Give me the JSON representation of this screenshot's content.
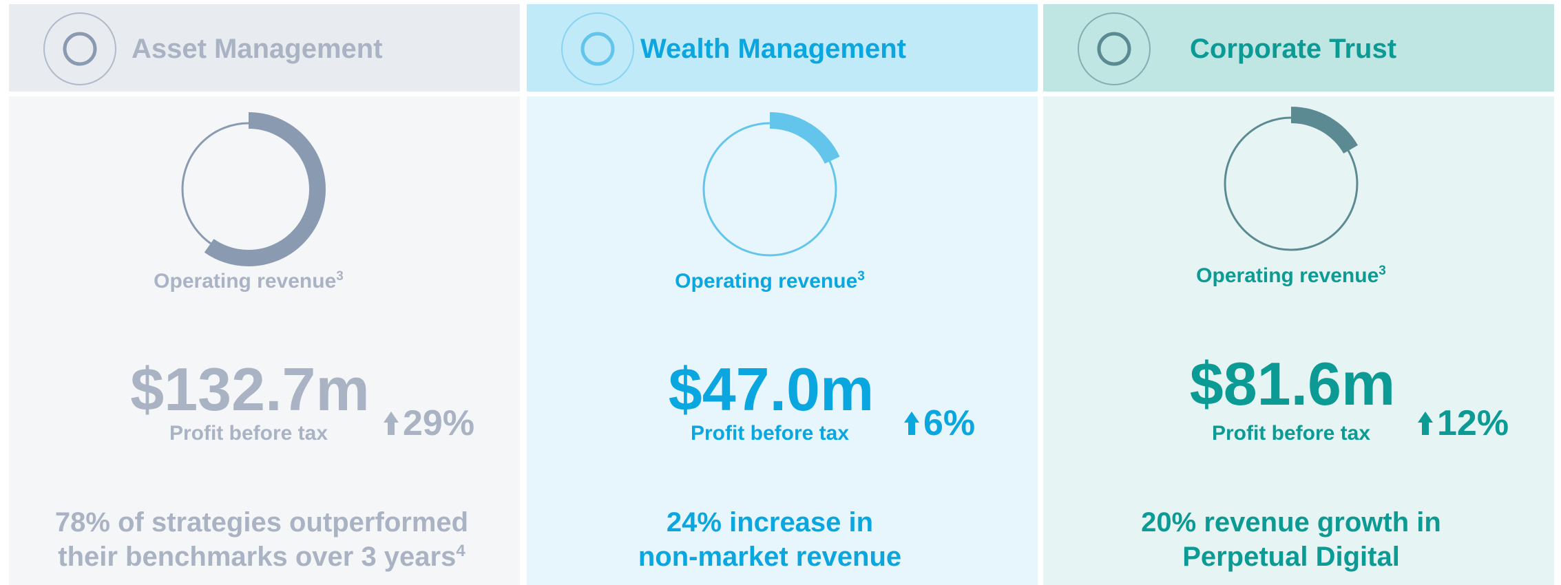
{
  "panels": [
    {
      "title": "Asset Management",
      "ring_label": "Operating revenue",
      "ring_sup": "3",
      "value": "$132.7m",
      "value_label": "Profit before tax",
      "change": "29%",
      "note": [
        "78% of strategies outperformed",
        "their benchmarks over 3 years"
      ],
      "note_sup": "4"
    },
    {
      "title": "Wealth Management",
      "ring_label": "Operating revenue",
      "ring_sup": "3",
      "value": "$47.0m",
      "value_label": "Profit before tax",
      "change": "6%",
      "note": [
        "24% increase in",
        "non-market revenue"
      ]
    },
    {
      "title": "Corporate Trust",
      "ring_label": "Operating revenue",
      "ring_sup": "3",
      "value": "$81.6m",
      "value_label": "Profit before tax",
      "change": "12%",
      "note": [
        "20% revenue growth in",
        "Perpetual Digital"
      ]
    }
  ]
}
